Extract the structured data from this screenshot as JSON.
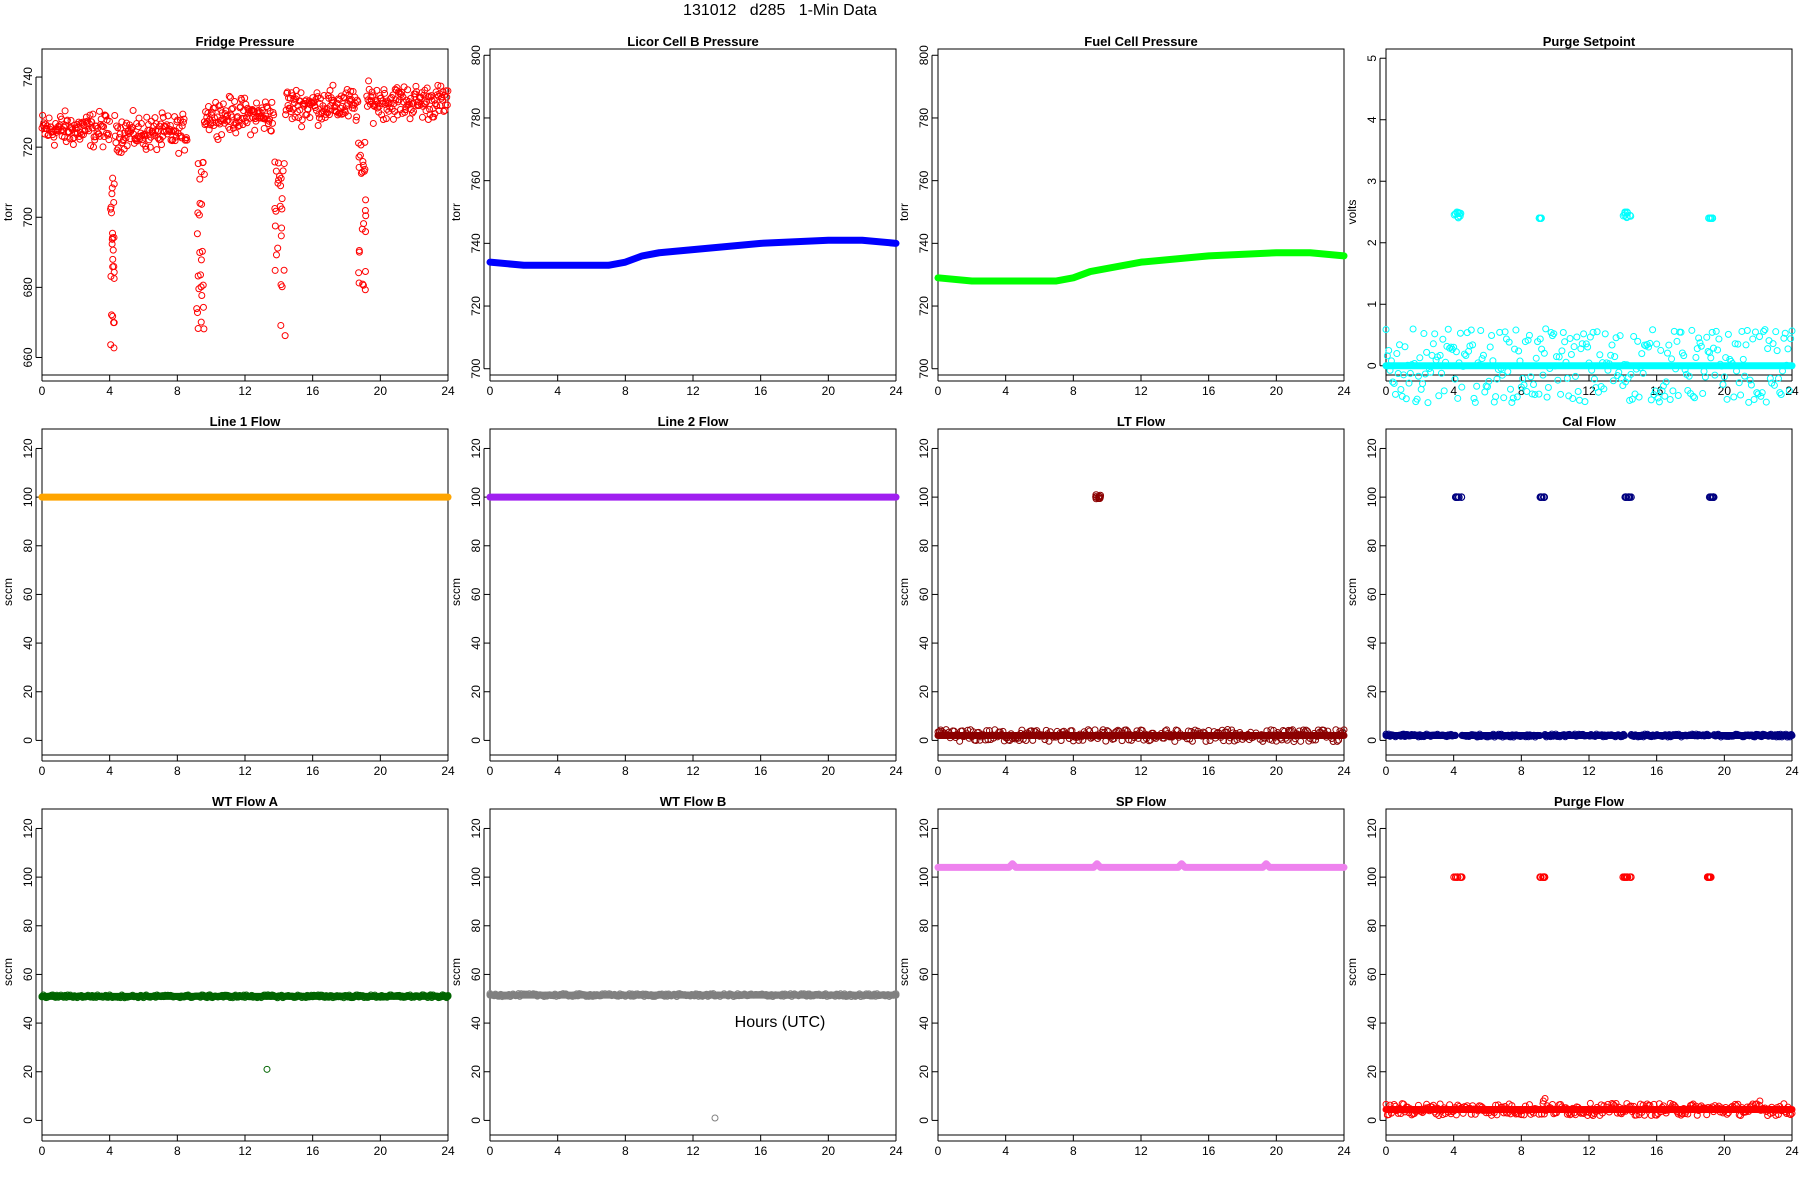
{
  "title": "131012   d285   1-Min Data",
  "xlabel": "Hours (UTC)",
  "chart_data": [
    {
      "name": "Fridge Pressure",
      "type": "scatter",
      "xlim": [
        0,
        24
      ],
      "ylim": [
        655,
        748
      ],
      "xticks": [
        0,
        4,
        8,
        12,
        16,
        20,
        24
      ],
      "yticks": [
        660,
        680,
        700,
        720,
        740
      ],
      "ylabel": "torr",
      "color": "#ff0000",
      "segments": [
        [
          0,
          4,
          725,
          4
        ],
        [
          4.3,
          8.6,
          724,
          4
        ],
        [
          9.6,
          13.7,
          729,
          4
        ],
        [
          14.4,
          18.7,
          732,
          4
        ],
        [
          19.2,
          24,
          733,
          4
        ]
      ],
      "dips": [
        [
          4.05,
          4.3,
          658,
          712
        ],
        [
          9.1,
          9.6,
          662,
          716
        ],
        [
          13.7,
          14.4,
          665,
          719
        ],
        [
          18.7,
          19.2,
          666,
          722
        ]
      ]
    },
    {
      "name": "Licor Cell B Pressure",
      "type": "line",
      "xlim": [
        0,
        24
      ],
      "ylim": [
        698,
        802
      ],
      "xticks": [
        0,
        4,
        8,
        12,
        16,
        20,
        24
      ],
      "yticks": [
        700,
        720,
        740,
        760,
        780,
        800
      ],
      "ylabel": "torr",
      "color": "#0000ff",
      "x": [
        0,
        2,
        4,
        6,
        7,
        8,
        9,
        10,
        12,
        16,
        20,
        22,
        24
      ],
      "y": [
        734,
        733,
        733,
        733,
        733,
        734,
        736,
        737,
        738,
        740,
        741,
        741,
        740
      ]
    },
    {
      "name": "Fuel Cell Pressure",
      "type": "line",
      "xlim": [
        0,
        24
      ],
      "ylim": [
        698,
        802
      ],
      "xticks": [
        0,
        4,
        8,
        12,
        16,
        20,
        24
      ],
      "yticks": [
        700,
        720,
        740,
        760,
        780,
        800
      ],
      "ylabel": "torr",
      "color": "#00ff00",
      "x": [
        0,
        2,
        4,
        6,
        7,
        8,
        9,
        10,
        12,
        16,
        20,
        22,
        24
      ],
      "y": [
        729,
        728,
        728,
        728,
        728,
        729,
        731,
        732,
        734,
        736,
        737,
        737,
        736
      ]
    },
    {
      "name": "Purge Setpoint",
      "type": "scatter",
      "xlim": [
        0,
        24
      ],
      "ylim": [
        -0.15,
        5.15
      ],
      "xticks": [
        0,
        4,
        8,
        12,
        16,
        20,
        24
      ],
      "yticks": [
        0,
        1,
        2,
        3,
        4,
        5
      ],
      "ylabel": "volts",
      "color": "#00ffff",
      "baseline": [
        [
          0,
          24,
          0
        ]
      ],
      "clusters": [
        [
          4.0,
          4.5,
          2.4,
          2.5
        ],
        [
          9.05,
          9.25,
          2.4,
          2.4
        ],
        [
          14.0,
          14.5,
          2.4,
          2.5
        ],
        [
          19.0,
          19.3,
          2.4,
          2.4
        ]
      ]
    },
    {
      "name": "Line 1 Flow",
      "type": "line",
      "xlim": [
        0,
        24
      ],
      "ylim": [
        -6,
        128
      ],
      "xticks": [
        0,
        4,
        8,
        12,
        16,
        20,
        24
      ],
      "yticks": [
        0,
        20,
        40,
        60,
        80,
        100,
        120
      ],
      "ylabel": "sccm",
      "color": "#ffa500",
      "x": [
        0,
        24
      ],
      "y": [
        100,
        100
      ]
    },
    {
      "name": "Line 2 Flow",
      "type": "line",
      "xlim": [
        0,
        24
      ],
      "ylim": [
        -6,
        128
      ],
      "xticks": [
        0,
        4,
        8,
        12,
        16,
        20,
        24
      ],
      "yticks": [
        0,
        20,
        40,
        60,
        80,
        100,
        120
      ],
      "ylabel": "sccm",
      "color": "#a020f0",
      "x": [
        0,
        24
      ],
      "y": [
        100,
        100
      ]
    },
    {
      "name": "LT Flow",
      "type": "scatter",
      "xlim": [
        0,
        24
      ],
      "ylim": [
        -6,
        128
      ],
      "xticks": [
        0,
        4,
        8,
        12,
        16,
        20,
        24
      ],
      "yticks": [
        0,
        20,
        40,
        60,
        80,
        100,
        120
      ],
      "ylabel": "sccm",
      "color": "#8b0000",
      "baseline": [
        [
          0,
          24,
          2
        ]
      ],
      "clusters": [
        [
          9.3,
          9.6,
          99,
          101
        ]
      ]
    },
    {
      "name": "Cal Flow",
      "type": "scatter",
      "xlim": [
        0,
        24
      ],
      "ylim": [
        -6,
        128
      ],
      "xticks": [
        0,
        4,
        8,
        12,
        16,
        20,
        24
      ],
      "yticks": [
        0,
        20,
        40,
        60,
        80,
        100,
        120
      ],
      "ylabel": "sccm",
      "color": "#000080",
      "baseline": [
        [
          0,
          4.1,
          2
        ],
        [
          4.5,
          9.1,
          2
        ],
        [
          9.4,
          14.1,
          2
        ],
        [
          14.5,
          19.1,
          2
        ],
        [
          19.4,
          24,
          2
        ]
      ],
      "clusters": [
        [
          4.1,
          4.5,
          100,
          100
        ],
        [
          9.1,
          9.4,
          100,
          100
        ],
        [
          14.1,
          14.5,
          100,
          100
        ],
        [
          19.1,
          19.4,
          100,
          100
        ]
      ]
    },
    {
      "name": "WT Flow A",
      "type": "scatter",
      "xlim": [
        0,
        24
      ],
      "ylim": [
        -6,
        128
      ],
      "xticks": [
        0,
        4,
        8,
        12,
        16,
        20,
        24
      ],
      "yticks": [
        0,
        20,
        40,
        60,
        80,
        100,
        120
      ],
      "ylabel": "sccm",
      "color": "#006400",
      "baseline": [
        [
          0,
          24,
          51
        ]
      ],
      "outliers": [
        [
          13.3,
          21
        ]
      ]
    },
    {
      "name": "WT Flow B",
      "type": "scatter",
      "xlim": [
        0,
        24
      ],
      "ylim": [
        -6,
        128
      ],
      "xticks": [
        0,
        4,
        8,
        12,
        16,
        20,
        24
      ],
      "yticks": [
        0,
        20,
        40,
        60,
        80,
        100,
        120
      ],
      "ylabel": "sccm",
      "color": "#808080",
      "baseline": [
        [
          0,
          24,
          51.5
        ]
      ],
      "outliers": [
        [
          13.3,
          1
        ]
      ]
    },
    {
      "name": "SP Flow",
      "type": "line",
      "xlim": [
        0,
        24
      ],
      "ylim": [
        -6,
        128
      ],
      "xticks": [
        0,
        4,
        8,
        12,
        16,
        20,
        24
      ],
      "yticks": [
        0,
        20,
        40,
        60,
        80,
        100,
        120
      ],
      "ylabel": "sccm",
      "color": "#ee82ee",
      "x": [
        0,
        4.2,
        4.4,
        4.6,
        9.2,
        9.4,
        9.6,
        14.2,
        14.4,
        14.6,
        19.2,
        19.4,
        19.6,
        24
      ],
      "y": [
        104,
        104,
        105.5,
        104,
        104,
        105.5,
        104,
        104,
        105.5,
        104,
        104,
        105.5,
        104,
        104
      ]
    },
    {
      "name": "Purge Flow",
      "type": "scatter",
      "xlim": [
        0,
        24
      ],
      "ylim": [
        -6,
        128
      ],
      "xticks": [
        0,
        4,
        8,
        12,
        16,
        20,
        24
      ],
      "yticks": [
        0,
        20,
        40,
        60,
        80,
        100,
        120
      ],
      "ylabel": "sccm",
      "color": "#ff0000",
      "baseline": [
        [
          0,
          24,
          4.5
        ]
      ],
      "clusters": [
        [
          4.0,
          4.5,
          100,
          100
        ],
        [
          9.1,
          9.4,
          100,
          100
        ],
        [
          14.0,
          14.5,
          100,
          100
        ],
        [
          19.0,
          19.3,
          100,
          100
        ]
      ],
      "outliers": [
        [
          9.4,
          9
        ],
        [
          9.3,
          8
        ],
        [
          22.1,
          8
        ]
      ]
    }
  ]
}
